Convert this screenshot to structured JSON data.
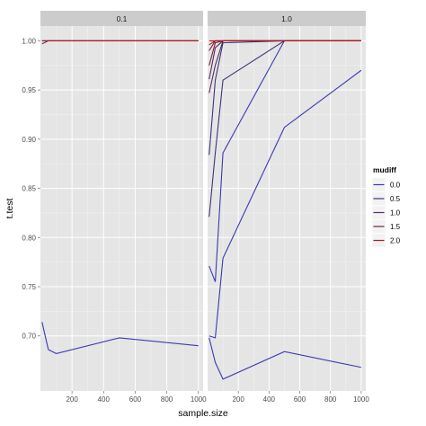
{
  "chart_data": {
    "type": "line",
    "xlabel": "sample.size",
    "ylabel": "t.test",
    "facets": [
      "0.1",
      "1.0"
    ],
    "x": [
      10,
      50,
      100,
      500,
      1000
    ],
    "x_ticks": [
      200,
      400,
      600,
      800,
      1000
    ],
    "xlim": [
      0,
      1030
    ],
    "y_ticks": [
      0.7,
      0.75,
      0.8,
      0.85,
      0.9,
      0.95,
      1.0
    ],
    "y_tick_labels": [
      "0.70",
      "0.75",
      "0.80",
      "0.85",
      "0.90",
      "0.95",
      "1.00"
    ],
    "ylim": [
      0.644,
      1.015
    ],
    "grid": true,
    "legend": {
      "title": "mudiff",
      "position": "right",
      "entries": [
        "0.0",
        "0.5",
        "1.0",
        "1.5",
        "2.0"
      ],
      "colors": [
        "#3a3ab0",
        "#3b3478",
        "#5a2a62",
        "#7a1e3e",
        "#b01818"
      ]
    },
    "panels": [
      {
        "facet": "0.1",
        "series": [
          {
            "name": "0.0",
            "color": "#3a3ab0",
            "values": [
              0.714,
              0.686,
              0.682,
              0.698,
              0.69
            ]
          },
          {
            "name": "0.5",
            "color": "#3b3478",
            "values": [
              0.997,
              1.0,
              1.0,
              1.0,
              1.0
            ]
          },
          {
            "name": "1.0",
            "color": "#5a2a62",
            "values": [
              1.0,
              1.0,
              1.0,
              1.0,
              1.0
            ]
          },
          {
            "name": "1.5",
            "color": "#7a1e3e",
            "values": [
              1.0,
              1.0,
              1.0,
              1.0,
              1.0
            ]
          },
          {
            "name": "2.0",
            "color": "#b01818",
            "values": [
              1.0,
              1.0,
              1.0,
              1.0,
              1.0
            ]
          }
        ]
      },
      {
        "facet": "1.0",
        "series": [
          {
            "name": "0.0",
            "color": "#3a3ab0",
            "values": [
              0.698,
              0.673,
              0.656,
              0.684,
              0.668
            ]
          },
          {
            "name": "0.0",
            "color": "#3a3ab0",
            "values": [
              0.7,
              0.698,
              0.779,
              0.912,
              0.97
            ]
          },
          {
            "name": "0.0",
            "color": "#3a3ab0",
            "values": [
              0.771,
              0.755,
              0.886,
              1.0,
              1.0
            ]
          },
          {
            "name": "0.5",
            "color": "#3b3478",
            "values": [
              0.821,
              0.886,
              0.96,
              1.0,
              1.0
            ]
          },
          {
            "name": "0.5",
            "color": "#3b3478",
            "values": [
              0.884,
              0.96,
              0.998,
              1.0,
              1.0
            ]
          },
          {
            "name": "1.0",
            "color": "#5a2a62",
            "values": [
              0.947,
              0.975,
              1.0,
              1.0,
              1.0
            ]
          },
          {
            "name": "1.0",
            "color": "#5a2a62",
            "values": [
              0.961,
              0.993,
              1.0,
              1.0,
              1.0
            ]
          },
          {
            "name": "1.5",
            "color": "#7a1e3e",
            "values": [
              0.975,
              0.998,
              1.0,
              1.0,
              1.0
            ]
          },
          {
            "name": "1.5",
            "color": "#7a1e3e",
            "values": [
              0.99,
              1.0,
              1.0,
              1.0,
              1.0
            ]
          },
          {
            "name": "2.0",
            "color": "#b01818",
            "values": [
              0.996,
              1.0,
              1.0,
              1.0,
              1.0
            ]
          },
          {
            "name": "2.0",
            "color": "#b01818",
            "values": [
              1.0,
              1.0,
              1.0,
              1.0,
              1.0
            ]
          }
        ]
      }
    ]
  }
}
